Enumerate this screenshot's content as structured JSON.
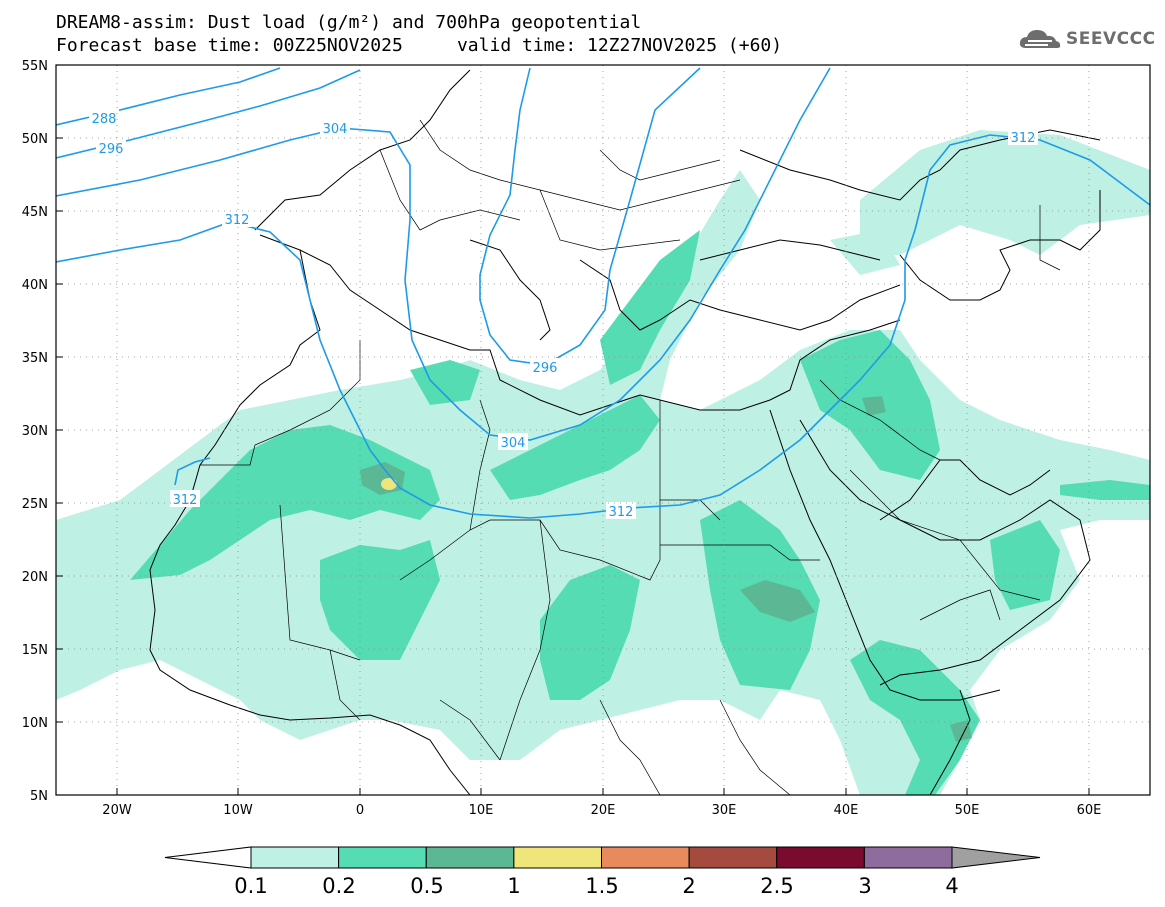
{
  "header": {
    "line1": "DREAM8-assim: Dust load (g/m²) and 700hPa geopotential",
    "line2": "Forecast base time: 00Z25NOV2025     valid time: 12Z27NOV2025 (+60)"
  },
  "logo": {
    "text": "SEEVCCC",
    "icon": "cloud-icon"
  },
  "map": {
    "lat_labels": [
      "55N",
      "50N",
      "45N",
      "40N",
      "35N",
      "30N",
      "25N",
      "20N",
      "15N",
      "10N",
      "5N"
    ],
    "lon_labels": [
      "20W",
      "10W",
      "0",
      "10E",
      "20E",
      "30E",
      "40E",
      "50E",
      "60E"
    ],
    "contour_labels": [
      "288",
      "296",
      "304",
      "312",
      "312",
      "312",
      "296",
      "304",
      "312"
    ]
  },
  "colorbar": {
    "labels": [
      "0.1",
      "0.2",
      "0.5",
      "1",
      "1.5",
      "2",
      "2.5",
      "3",
      "4"
    ],
    "colors": [
      "#ffffff",
      "#bff0e4",
      "#55dcb2",
      "#5cb894",
      "#f0e57a",
      "#e8895e",
      "#a44a3e",
      "#7a0a2e",
      "#8f6c9e",
      "#a0a0a0"
    ]
  }
}
